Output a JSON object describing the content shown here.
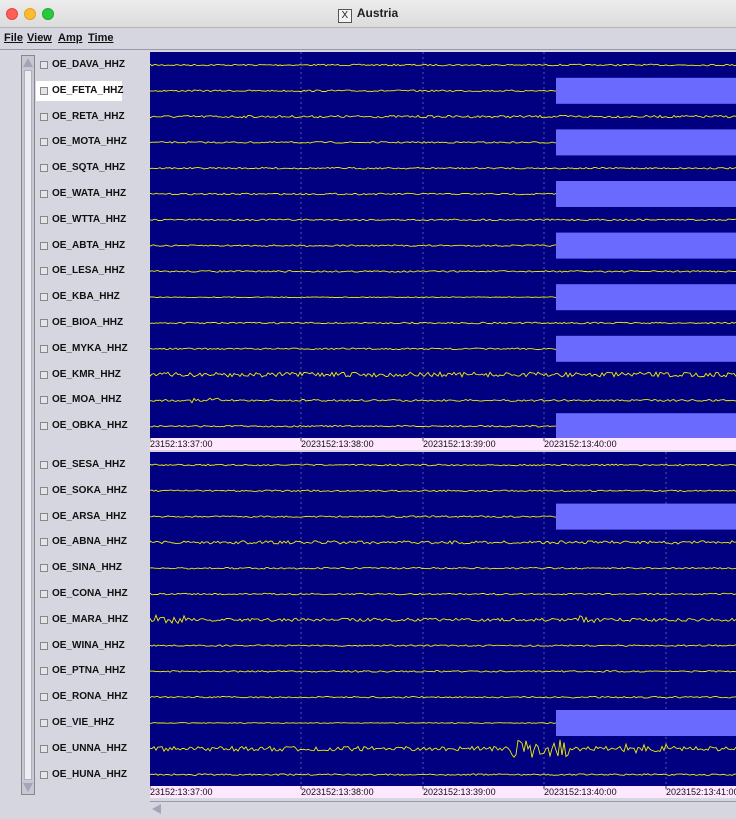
{
  "window": {
    "title": "Austria"
  },
  "menu": [
    "File",
    "View",
    "Amp",
    "Time"
  ],
  "colors": {
    "background": "#000080",
    "trace": "#f0f000",
    "highlight": "#6a6aff",
    "axis_bg": "#ffe8ff"
  },
  "panel1": {
    "channels": [
      {
        "label": "OE_DAVA_HHZ",
        "amp": 1,
        "hl": false
      },
      {
        "label": "OE_FETA_HHZ",
        "amp": 1,
        "hl": true
      },
      {
        "label": "OE_RETA_HHZ",
        "amp": 1.5,
        "hl": false
      },
      {
        "label": "OE_MOTA_HHZ",
        "amp": 1,
        "hl": true
      },
      {
        "label": "OE_SQTA_HHZ",
        "amp": 1,
        "hl": false
      },
      {
        "label": "OE_WATA_HHZ",
        "amp": 1,
        "hl": true
      },
      {
        "label": "OE_WTTA_HHZ",
        "amp": 1,
        "hl": false
      },
      {
        "label": "OE_ABTA_HHZ",
        "amp": 1,
        "hl": true
      },
      {
        "label": "OE_LESA_HHZ",
        "amp": 1,
        "hl": false
      },
      {
        "label": "OE_KBA_HHZ",
        "amp": 0.5,
        "hl": true
      },
      {
        "label": "OE_BIOA_HHZ",
        "amp": 1,
        "hl": false
      },
      {
        "label": "OE_MYKA_HHZ",
        "amp": 1,
        "hl": true
      },
      {
        "label": "OE_KMR_HHZ",
        "amp": 3,
        "hl": false
      },
      {
        "label": "OE_MOA_HHZ",
        "amp": 1.2,
        "hl": false
      },
      {
        "label": "OE_OBKA_HHZ",
        "amp": 1,
        "hl": true
      }
    ],
    "time_labels": [
      "23152:13:37:00",
      "2023152:13:38:00",
      "2023152:13:39:00",
      "2023152:13:40:00"
    ]
  },
  "panel2": {
    "channels": [
      {
        "label": "OE_SESA_HHZ",
        "amp": 1,
        "hl": false
      },
      {
        "label": "OE_SOKA_HHZ",
        "amp": 1,
        "hl": false
      },
      {
        "label": "OE_ARSA_HHZ",
        "amp": 1,
        "hl": true
      },
      {
        "label": "OE_ABNA_HHZ",
        "amp": 2,
        "hl": false
      },
      {
        "label": "OE_SINA_HHZ",
        "amp": 1,
        "hl": false
      },
      {
        "label": "OE_CONA_HHZ",
        "amp": 1,
        "hl": false
      },
      {
        "label": "OE_MARA_HHZ",
        "amp": 2,
        "hl": false
      },
      {
        "label": "OE_WINA_HHZ",
        "amp": 1,
        "hl": false
      },
      {
        "label": "OE_PTNA_HHZ",
        "amp": 1,
        "hl": false
      },
      {
        "label": "OE_RONA_HHZ",
        "amp": 1,
        "hl": false
      },
      {
        "label": "OE_VIE_HHZ",
        "amp": 0.5,
        "hl": true
      },
      {
        "label": "OE_UNNA_HHZ",
        "amp": 3,
        "hl": false
      },
      {
        "label": "OE_HUNA_HHZ",
        "amp": 1,
        "hl": false
      }
    ],
    "time_labels": [
      "23152:13:37:00",
      "2023152:13:38:00",
      "2023152:13:39:00",
      "2023152:13:40:00",
      "2023152:13:41:00"
    ]
  }
}
